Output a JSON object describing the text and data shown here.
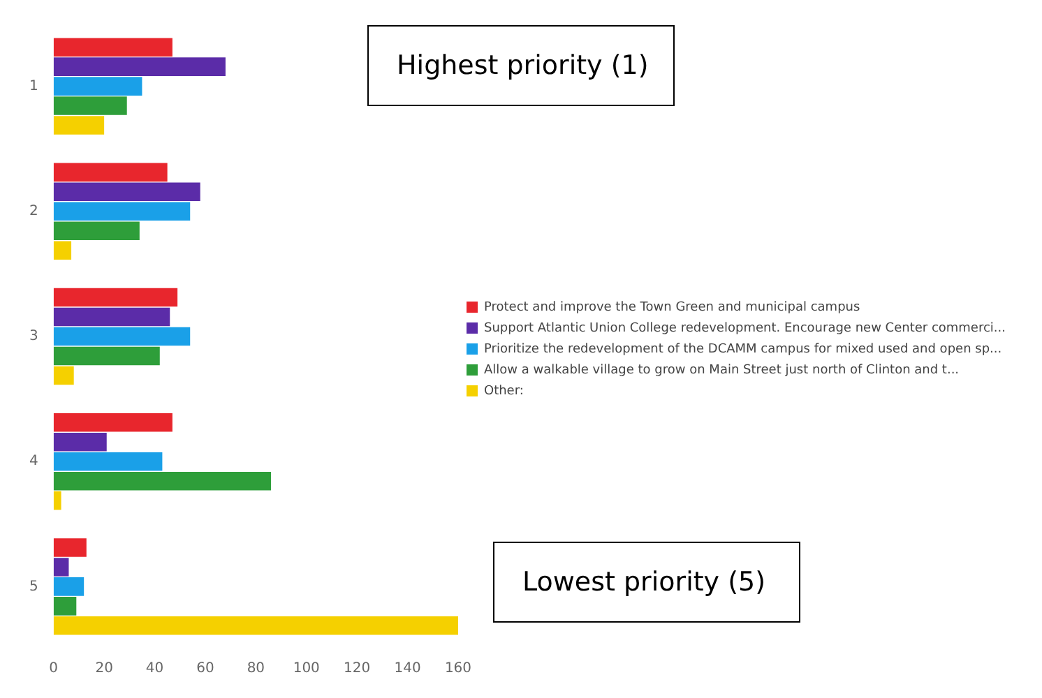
{
  "chart_data": {
    "type": "bar",
    "orientation": "horizontal",
    "categories": [
      "1",
      "2",
      "3",
      "4",
      "5"
    ],
    "series": [
      {
        "name": "Protect and improve the Town Green and municipal campus",
        "color": "#e8262d",
        "values": [
          47,
          45,
          49,
          47,
          13
        ]
      },
      {
        "name": "Support Atlantic Union College redevelopment. Encourage new Center commerci...",
        "color": "#5b2ca8",
        "values": [
          68,
          58,
          46,
          21,
          6
        ]
      },
      {
        "name": "Prioritize the redevelopment of the DCAMM campus for mixed used and open sp...",
        "color": "#1aa0e8",
        "values": [
          35,
          54,
          54,
          43,
          12
        ]
      },
      {
        "name": "Allow a walkable village to grow on Main Street just north of Clinton and t...",
        "color": "#2e9e3a",
        "values": [
          29,
          34,
          42,
          86,
          9
        ]
      },
      {
        "name": "Other:",
        "color": "#f5d000",
        "values": [
          20,
          7,
          8,
          3,
          160
        ]
      }
    ],
    "xlim": [
      0,
      160
    ],
    "xticks": [
      0,
      20,
      40,
      60,
      80,
      100,
      120,
      140,
      160
    ],
    "grid": false,
    "legend": "right",
    "annotations": [
      "Highest priority (1)",
      "Lowest priority (5)"
    ]
  }
}
